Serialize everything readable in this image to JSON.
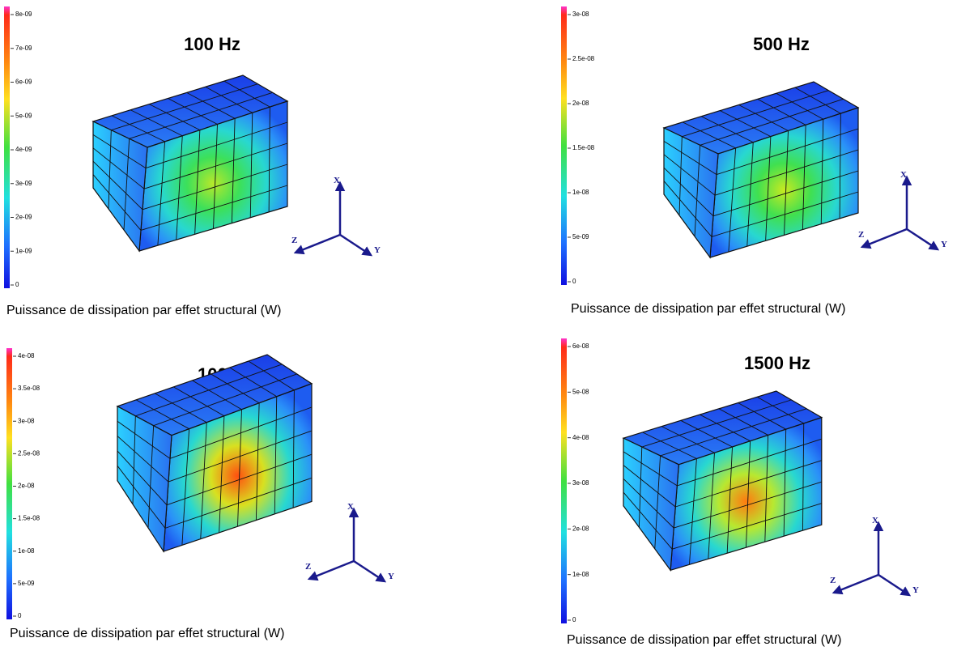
{
  "panels": [
    {
      "title": "100 Hz",
      "caption": "Puissance de dissipation par effet structural  (W)",
      "colorbar_ticks": [
        "8e-09",
        "7e-09",
        "6e-09",
        "5e-09",
        "4e-09",
        "3e-09",
        "2e-09",
        "1e-09",
        "0"
      ],
      "axes": [
        "X",
        "Y",
        "Z"
      ]
    },
    {
      "title": "500 Hz",
      "caption": "Puissance de dissipation par effet structural  (W)",
      "colorbar_ticks": [
        "3e-08",
        "2.5e-08",
        "2e-08",
        "1.5e-08",
        "1e-08",
        "5e-09",
        "0"
      ],
      "axes": [
        "X",
        "Y",
        "Z"
      ]
    },
    {
      "title": "1000 Hz",
      "caption": "Puissance de dissipation par effet structural  (W)",
      "colorbar_ticks": [
        "4e-08",
        "3.5e-08",
        "3e-08",
        "2.5e-08",
        "2e-08",
        "1.5e-08",
        "1e-08",
        "5e-09",
        "0"
      ],
      "axes": [
        "X",
        "Y",
        "Z"
      ]
    },
    {
      "title": "1500 Hz",
      "caption": "Puissance de dissipation par effet structural  (W)",
      "colorbar_ticks": [
        "6e-08",
        "5e-08",
        "4e-08",
        "3e-08",
        "2e-08",
        "1e-08",
        "0"
      ],
      "axes": [
        "X",
        "Y",
        "Z"
      ]
    }
  ]
}
